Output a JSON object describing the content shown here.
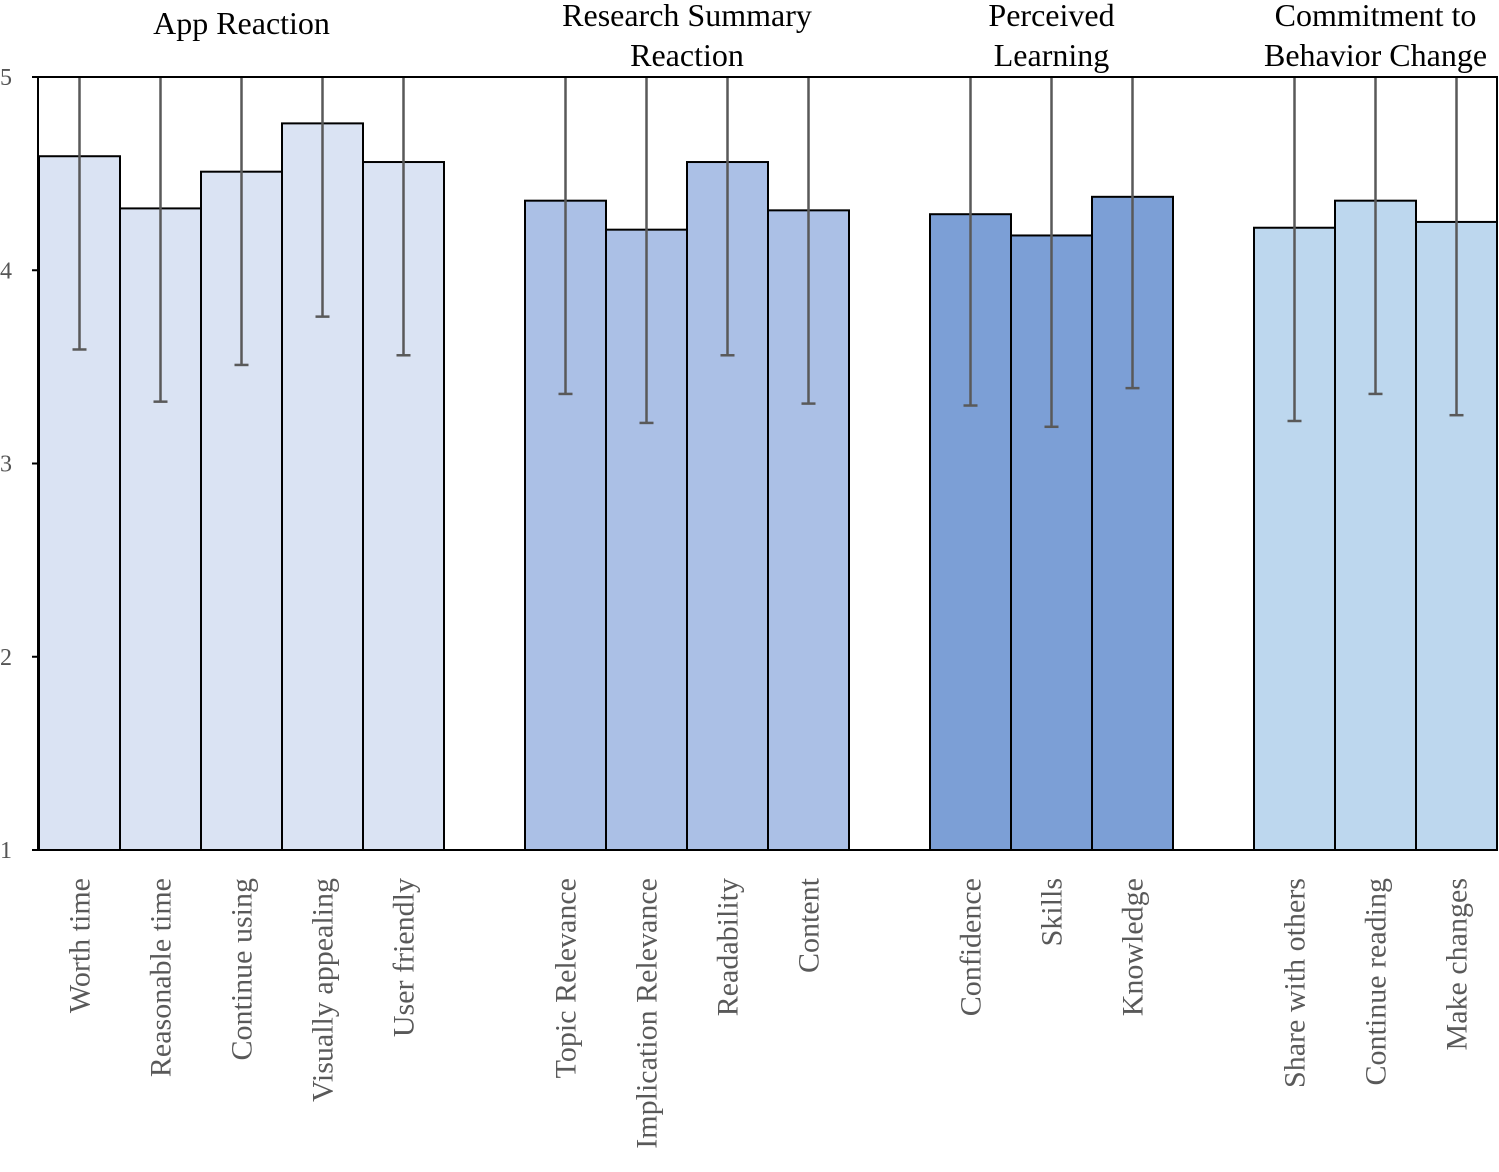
{
  "chart_data": {
    "type": "bar",
    "title": "",
    "xlabel": "",
    "ylabel": "",
    "ylim": [
      1,
      5
    ],
    "yticks": [
      1,
      2,
      3,
      4,
      5
    ],
    "grid": false,
    "error_bars": true,
    "groups": [
      {
        "name": "App  Reaction",
        "name_lines": [
          "App  Reaction"
        ],
        "color": "#dae3f3",
        "categories": [
          "Worth time",
          "Reasonable time",
          "Continue using",
          "Visually appealing",
          "User friendly"
        ],
        "values": [
          4.59,
          4.32,
          4.51,
          4.76,
          4.56
        ],
        "errors": [
          1.0,
          1.0,
          1.0,
          1.0,
          1.0
        ]
      },
      {
        "name": "Research Summary Reaction",
        "name_lines": [
          "Research Summary",
          "Reaction"
        ],
        "color": "#abc0e6",
        "categories": [
          "Topic Relevance",
          "Implication Relevance",
          "Readability",
          "Content"
        ],
        "values": [
          4.36,
          4.21,
          4.56,
          4.31
        ],
        "errors": [
          1.0,
          1.0,
          1.0,
          1.0
        ]
      },
      {
        "name": "Perceived Learning",
        "name_lines": [
          "Perceived",
          "Learning"
        ],
        "color": "#7c9fd6",
        "categories": [
          "Confidence",
          "Skills",
          "Knowledge"
        ],
        "values": [
          4.29,
          4.18,
          4.38
        ],
        "errors": [
          0.99,
          0.99,
          0.99
        ]
      },
      {
        "name": "Commitment to Behavior Change",
        "name_lines": [
          "Commitment to",
          "Behavior Change"
        ],
        "color": "#bdd7ee",
        "categories": [
          "Share with others",
          "Continue reading",
          "Make changes"
        ],
        "values": [
          4.22,
          4.36,
          4.25
        ],
        "errors": [
          1.0,
          1.0,
          1.0
        ]
      }
    ]
  }
}
